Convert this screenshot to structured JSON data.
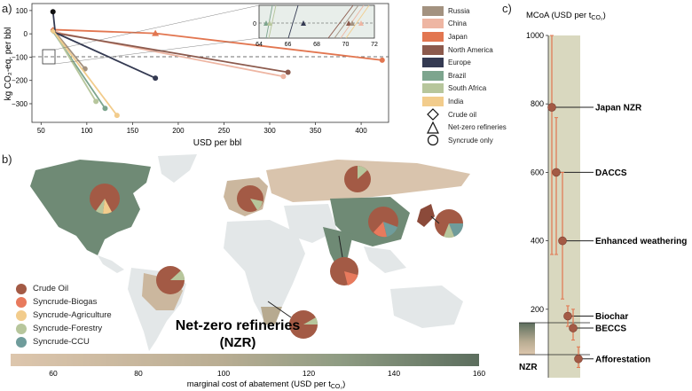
{
  "panel_a": {
    "label": "a)",
    "ylabel": "kg CO₂-eq. per bbl",
    "xlabel": "USD per bbl",
    "xticks": [
      "50",
      "100",
      "150",
      "200",
      "250",
      "300",
      "350",
      "400"
    ],
    "yticks": [
      "100",
      "0",
      "−100",
      "−200",
      "−300"
    ],
    "inset_xticks": [
      "64",
      "66",
      "68",
      "70",
      "72"
    ],
    "inset_ytick": "0",
    "legend_regions": [
      {
        "label": "Russia",
        "color": "#a39280"
      },
      {
        "label": "China",
        "color": "#eeb6a3"
      },
      {
        "label": "Japan",
        "color": "#e27650"
      },
      {
        "label": "North America",
        "color": "#8c5a4d"
      },
      {
        "label": "Europe",
        "color": "#343a52"
      },
      {
        "label": "Brazil",
        "color": "#7da58e"
      },
      {
        "label": "South Africa",
        "color": "#b7c69c"
      },
      {
        "label": "India",
        "color": "#f2cc8c"
      }
    ],
    "legend_markers": [
      {
        "label": "Crude oil",
        "icon": "diamond-icon"
      },
      {
        "label": "Net-zero refineries",
        "icon": "triangle-icon"
      },
      {
        "label": "Syncrude only",
        "icon": "circle-icon"
      }
    ]
  },
  "panel_b": {
    "label": "b)",
    "title_line1": "Net-zero refineries",
    "title_line2": "(NZR)",
    "legend": [
      {
        "label": "Crude Oil",
        "color": "#a35a45"
      },
      {
        "label": "Syncrude-Biogas",
        "color": "#e87a5d"
      },
      {
        "label": "Syncrude-Agriculture",
        "color": "#f2cc8c"
      },
      {
        "label": "Syncrude-Forestry",
        "color": "#b7c69c"
      },
      {
        "label": "Syncrude-CCU",
        "color": "#6f9c9b"
      }
    ],
    "colorbar_ticks": [
      "60",
      "80",
      "100",
      "120",
      "140",
      "160"
    ],
    "colorbar_label": "marginal cost of abatement (USD per t",
    "colorbar_label_sub": "CO₂",
    "colorbar_label_end": ")"
  },
  "panel_c": {
    "label": "c)",
    "title": "MCoA (USD per t",
    "title_sub": "CO₂",
    "title_end": ")",
    "yticks": [
      "1000",
      "800",
      "600",
      "400",
      "200"
    ],
    "nzr_label": "NZR",
    "items": [
      {
        "label": "Japan NZR",
        "value": 790
      },
      {
        "label": "DACCS",
        "value": 600
      },
      {
        "label": "Enhanced weathering",
        "value": 400
      },
      {
        "label": "Biochar",
        "value": 180
      },
      {
        "label": "BECCS",
        "value": 145
      },
      {
        "label": "Afforestation",
        "value": 55
      }
    ]
  },
  "chart_data": {
    "type": "line",
    "xlabel": "USD per bbl",
    "ylabel": "kg CO2-eq. per bbl",
    "xlim": [
      40,
      430
    ],
    "ylim": [
      -380,
      130
    ],
    "series": [
      {
        "name": "Russia",
        "x": [
          63,
          66,
          98
        ],
        "y": [
          15,
          5,
          -150
        ]
      },
      {
        "name": "China",
        "x": [
          63,
          72,
          315
        ],
        "y": [
          15,
          2,
          -183
        ]
      },
      {
        "name": "Japan",
        "x": [
          63,
          175,
          423
        ],
        "y": [
          18,
          2,
          -113
        ]
      },
      {
        "name": "North America",
        "x": [
          63,
          66,
          320
        ],
        "y": [
          12,
          3,
          -165
        ]
      },
      {
        "name": "Europe",
        "x": [
          63,
          65.5,
          175
        ],
        "y": [
          95,
          5,
          -190
        ]
      },
      {
        "name": "Brazil",
        "x": [
          63,
          64.2,
          120
        ],
        "y": [
          12,
          3,
          -320
        ]
      },
      {
        "name": "South Africa",
        "x": [
          63,
          64.8,
          110
        ],
        "y": [
          10,
          4,
          -290
        ]
      },
      {
        "name": "India",
        "x": [
          63,
          65,
          133
        ],
        "y": [
          12,
          4,
          -350
        ]
      }
    ]
  }
}
